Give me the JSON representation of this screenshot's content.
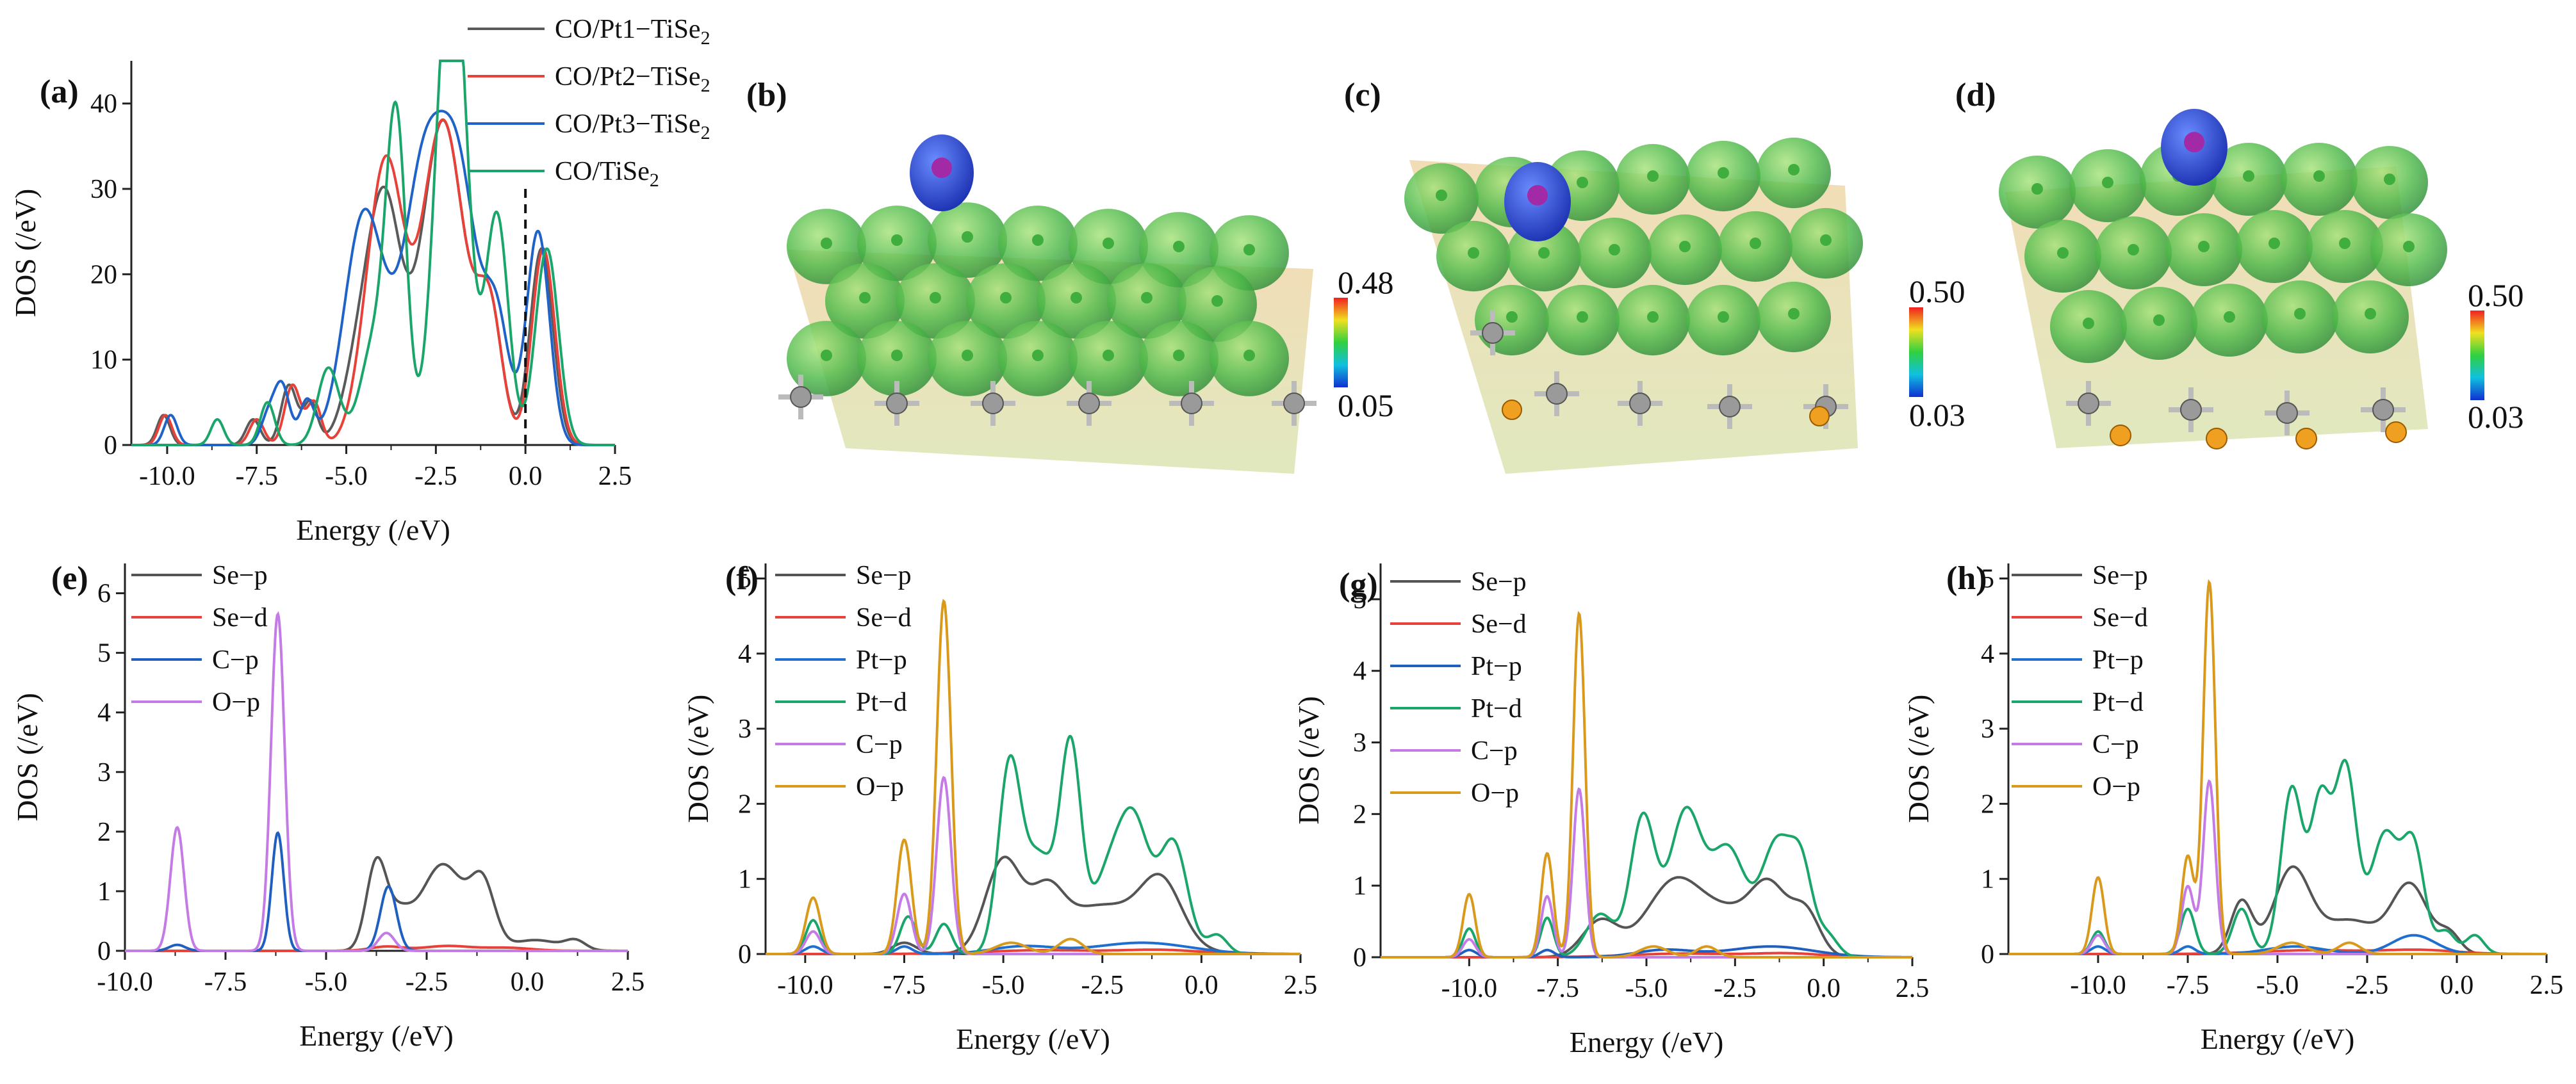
{
  "colors": {
    "Se-p": "#555555",
    "Se-d": "#e8413a",
    "C-p": "#1f5fbf",
    "Pt-p": "#1f6fd0",
    "Pt-d": "#1aa66b",
    "O-p": "#c47be6",
    "O-p-alt": "#d99a1c",
    "Pt1": "#5a5a5a",
    "Pt2": "#e8413a",
    "Pt3": "#1f62c8",
    "TiSe2": "#1aa66b"
  },
  "structures": [
    {
      "label": "(b)",
      "cb_max": "0.48",
      "cb_min": "0.05"
    },
    {
      "label": "(c)",
      "cb_max": "0.50",
      "cb_min": "0.03"
    },
    {
      "label": "(d)",
      "cb_max": "0.50",
      "cb_min": "0.03"
    }
  ],
  "chart_data": [
    {
      "id": "a",
      "label": "(a)",
      "type": "line",
      "xlabel": "Energy (/eV)",
      "ylabel": "DOS (/eV)",
      "xlim": [
        -11,
        2.5
      ],
      "ylim": [
        0,
        45
      ],
      "xticks": [
        -10.0,
        -7.5,
        -5.0,
        -2.5,
        0.0,
        2.5
      ],
      "xtick_labels": [
        "-10.0",
        "-7.5",
        "-5.0",
        "-2.5",
        "0.0",
        "2.5"
      ],
      "yticks": [
        0,
        10,
        20,
        30,
        40
      ],
      "ytick_labels": [
        "0",
        "10",
        "20",
        "30",
        "40"
      ],
      "fermi_line": {
        "x": 0,
        "y_top": 30
      },
      "series": [
        {
          "name": "CO/Pt1−TiSe",
          "sub": "2",
          "color": "#5a5a5a",
          "peaks": [
            [
              -10.1,
              3.5,
              0.18
            ],
            [
              -7.6,
              3,
              0.2
            ],
            [
              -6.6,
              7,
              0.22
            ],
            [
              -6,
              5,
              0.2
            ],
            [
              -4.6,
              10,
              0.45
            ],
            [
              -3.9,
              26,
              0.45
            ],
            [
              -2.3,
              38,
              0.6
            ],
            [
              -1,
              15,
              0.35
            ],
            [
              0.45,
              23,
              0.32
            ]
          ]
        },
        {
          "name": "CO/Pt2−TiSe",
          "sub": "2",
          "color": "#e8413a",
          "peaks": [
            [
              -10.05,
              3.5,
              0.18
            ],
            [
              -7.5,
              3,
              0.2
            ],
            [
              -6.5,
              7,
              0.22
            ],
            [
              -5.9,
              5,
              0.2
            ],
            [
              -4.3,
              11,
              0.45
            ],
            [
              -3.8,
              26,
              0.45
            ],
            [
              -2.3,
              38,
              0.6
            ],
            [
              -1,
              15,
              0.35
            ],
            [
              0.5,
              23,
              0.32
            ]
          ]
        },
        {
          "name": "CO/Pt3−TiSe",
          "sub": "2",
          "color": "#1f62c8",
          "peaks": [
            [
              -9.9,
              3.5,
              0.18
            ],
            [
              -7.2,
              3,
              0.2
            ],
            [
              -6.8,
              7,
              0.22
            ],
            [
              -6.1,
              5,
              0.2
            ],
            [
              -4.5,
              27,
              0.55
            ],
            [
              -2.8,
              33,
              0.6
            ],
            [
              -1.8,
              26,
              0.5
            ],
            [
              -0.8,
              14,
              0.35
            ],
            [
              0.35,
              25,
              0.32
            ]
          ]
        },
        {
          "name": "CO/TiSe",
          "sub": "2",
          "color": "#1aa66b",
          "peaks": [
            [
              -8.6,
              3,
              0.18
            ],
            [
              -7.2,
              5,
              0.2
            ],
            [
              -5.5,
              9,
              0.3
            ],
            [
              -4.2,
              12,
              0.4
            ],
            [
              -3.6,
              36,
              0.28
            ],
            [
              -2.3,
              30,
              0.35
            ],
            [
              -1.9,
              41,
              0.35
            ],
            [
              -0.8,
              27,
              0.32
            ],
            [
              0.6,
              23,
              0.32
            ]
          ]
        }
      ]
    },
    {
      "id": "e",
      "label": "(e)",
      "type": "line",
      "xlabel": "Energy (/eV)",
      "ylabel": "DOS (/eV)",
      "xlim": [
        -10,
        2.5
      ],
      "ylim": [
        0,
        6.5
      ],
      "xticks": [
        -10.0,
        -7.5,
        -5.0,
        -2.5,
        0.0,
        2.5
      ],
      "xtick_labels": [
        "-10.0",
        "-7.5",
        "-5.0",
        "-2.5",
        "0.0",
        "2.5"
      ],
      "yticks": [
        0,
        1,
        2,
        3,
        4,
        5,
        6
      ],
      "ytick_labels": [
        "0",
        "1",
        "2",
        "3",
        "4",
        "5",
        "6"
      ],
      "series": [
        {
          "name": "Se−p",
          "color": "#555555",
          "peaks": [
            [
              -3.75,
              1.45,
              0.25
            ],
            [
              -2.1,
              1.45,
              0.55
            ],
            [
              -1.1,
              1.0,
              0.3
            ],
            [
              -3.2,
              0.5,
              0.3
            ],
            [
              0.2,
              0.18,
              0.6
            ],
            [
              1.2,
              0.15,
              0.25
            ]
          ]
        },
        {
          "name": "Se−d",
          "color": "#e8413a",
          "peaks": [
            [
              -3.5,
              0.07,
              0.4
            ],
            [
              -2,
              0.08,
              0.6
            ],
            [
              -0.5,
              0.05,
              0.6
            ]
          ]
        },
        {
          "name": "C−p",
          "color": "#1f5fbf",
          "peaks": [
            [
              -6.2,
              1.98,
              0.15
            ],
            [
              -3.45,
              1.08,
              0.2
            ],
            [
              -8.7,
              0.1,
              0.2
            ]
          ]
        },
        {
          "name": "O−p",
          "color": "#c47be6",
          "peaks": [
            [
              -8.7,
              2.07,
              0.17
            ],
            [
              -6.2,
              5.65,
              0.17
            ],
            [
              -3.5,
              0.3,
              0.2
            ]
          ]
        }
      ]
    },
    {
      "id": "f",
      "label": "(f)",
      "type": "line",
      "xlabel": "Energy (/eV)",
      "ylabel": "DOS (/eV)",
      "xlim": [
        -11,
        2.5
      ],
      "ylim": [
        0,
        5.2
      ],
      "xticks": [
        -10.0,
        -7.5,
        -5.0,
        -2.5,
        0.0,
        2.5
      ],
      "xtick_labels": [
        "-10.0",
        "-7.5",
        "-5.0",
        "-2.5",
        "0.0",
        "2.5"
      ],
      "yticks": [
        0,
        1,
        2,
        3,
        4,
        5
      ],
      "ytick_labels": [
        "0",
        "1",
        "2",
        "3",
        "4",
        "5"
      ],
      "series": [
        {
          "name": "Se−p",
          "color": "#555555",
          "peaks": [
            [
              -5,
              1.2,
              0.45
            ],
            [
              -3.9,
              0.6,
              0.4
            ],
            [
              -2.5,
              0.65,
              1.2
            ],
            [
              -1,
              0.75,
              0.5
            ],
            [
              -7.5,
              0.15,
              0.3
            ]
          ]
        },
        {
          "name": "Se−d",
          "color": "#e8413a",
          "peaks": [
            [
              -4,
              0.05,
              1.5
            ],
            [
              -1,
              0.05,
              1
            ]
          ]
        },
        {
          "name": "Pt−p",
          "color": "#1f6fd0",
          "peaks": [
            [
              -9.8,
              0.1,
              0.2
            ],
            [
              -4.5,
              0.1,
              0.8
            ],
            [
              -1.5,
              0.15,
              1.2
            ],
            [
              -7.5,
              0.1,
              0.2
            ]
          ]
        },
        {
          "name": "Pt−d",
          "color": "#1aa66b",
          "peaks": [
            [
              -9.8,
              0.45,
              0.18
            ],
            [
              -7.4,
              0.5,
              0.2
            ],
            [
              -6.5,
              0.4,
              0.2
            ],
            [
              -4.85,
              2.4,
              0.28
            ],
            [
              -3.3,
              2.65,
              0.26
            ],
            [
              -4.1,
              1.3,
              0.4
            ],
            [
              -1.7,
              1.7,
              0.4
            ],
            [
              -0.7,
              1.45,
              0.35
            ],
            [
              -2.4,
              0.9,
              0.4
            ],
            [
              0.4,
              0.25,
              0.25
            ]
          ]
        },
        {
          "name": "C−p",
          "color": "#c47be6",
          "peaks": [
            [
              -9.8,
              0.3,
              0.18
            ],
            [
              -7.5,
              0.8,
              0.18
            ],
            [
              -6.5,
              2.35,
              0.18
            ]
          ]
        },
        {
          "name": "O−p",
          "color": "#d99a1c",
          "peaks": [
            [
              -9.8,
              0.75,
              0.18
            ],
            [
              -7.5,
              1.52,
              0.18
            ],
            [
              -6.5,
              4.7,
              0.18
            ],
            [
              -4.8,
              0.15,
              0.4
            ],
            [
              -3.3,
              0.2,
              0.3
            ]
          ]
        }
      ]
    },
    {
      "id": "g",
      "label": "(g)",
      "type": "line",
      "xlabel": "Energy (/eV)",
      "ylabel": "DOS (/eV)",
      "xlim": [
        -12.5,
        2.5
      ],
      "ylim": [
        0,
        5.5
      ],
      "xticks": [
        -10.0,
        -7.5,
        -5.0,
        -2.5,
        0.0,
        2.5
      ],
      "xtick_labels": [
        "-10.0",
        "-7.5",
        "-5.0",
        "-2.5",
        "0.0",
        "2.5"
      ],
      "yticks": [
        0,
        1,
        2,
        3,
        4,
        5
      ],
      "ytick_labels": [
        "0",
        "1",
        "2",
        "3",
        "4",
        "5"
      ],
      "series": [
        {
          "name": "Se−p",
          "color": "#555555",
          "peaks": [
            [
              -6.3,
              0.5,
              0.5
            ],
            [
              -4.2,
              1.05,
              0.8
            ],
            [
              -2.5,
              0.55,
              0.8
            ],
            [
              -1.5,
              0.8,
              0.5
            ],
            [
              -0.5,
              0.6,
              0.4
            ]
          ]
        },
        {
          "name": "Se−d",
          "color": "#e8413a",
          "peaks": [
            [
              -4,
              0.05,
              1.5
            ],
            [
              -1,
              0.05,
              1
            ]
          ]
        },
        {
          "name": "Pt−p",
          "color": "#1f5fbf",
          "peaks": [
            [
              -10,
              0.1,
              0.2
            ],
            [
              -4.5,
              0.1,
              0.8
            ],
            [
              -1.5,
              0.15,
              1.2
            ],
            [
              -7.8,
              0.1,
              0.2
            ]
          ]
        },
        {
          "name": "Pt−d",
          "color": "#1aa66b",
          "peaks": [
            [
              -10,
              0.4,
              0.18
            ],
            [
              -7.8,
              0.55,
              0.18
            ],
            [
              -6.3,
              0.6,
              0.4
            ],
            [
              -5.1,
              1.95,
              0.35
            ],
            [
              -3.9,
              2.0,
              0.45
            ],
            [
              -2.7,
              1.5,
              0.5
            ],
            [
              -1.3,
              1.6,
              0.45
            ],
            [
              -0.6,
              1.0,
              0.3
            ],
            [
              0.1,
              0.3,
              0.3
            ]
          ]
        },
        {
          "name": "C−p",
          "color": "#c47be6",
          "peaks": [
            [
              -10,
              0.25,
              0.18
            ],
            [
              -7.8,
              0.85,
              0.17
            ],
            [
              -6.9,
              2.35,
              0.17
            ]
          ]
        },
        {
          "name": "O−p",
          "color": "#d99a1c",
          "peaks": [
            [
              -10,
              0.88,
              0.17
            ],
            [
              -7.8,
              1.45,
              0.17
            ],
            [
              -6.9,
              4.8,
              0.17
            ],
            [
              -4.8,
              0.15,
              0.4
            ],
            [
              -3.3,
              0.15,
              0.3
            ]
          ]
        }
      ]
    },
    {
      "id": "h",
      "label": "(h)",
      "type": "line",
      "xlabel": "Energy (/eV)",
      "ylabel": "DOS (/eV)",
      "xlim": [
        -12.5,
        2.5
      ],
      "ylim": [
        0,
        5.2
      ],
      "xticks": [
        -10.0,
        -7.5,
        -5.0,
        -2.5,
        0.0,
        2.5
      ],
      "xtick_labels": [
        "-10.0",
        "-7.5",
        "-5.0",
        "-2.5",
        "0.0",
        "2.5"
      ],
      "yticks": [
        0,
        1,
        2,
        3,
        4,
        5
      ],
      "ytick_labels": [
        "0",
        "1",
        "2",
        "3",
        "4",
        "5"
      ],
      "series": [
        {
          "name": "Se−p",
          "color": "#555555",
          "peaks": [
            [
              -6,
              0.7,
              0.3
            ],
            [
              -4.6,
              1.1,
              0.5
            ],
            [
              -3,
              0.45,
              0.8
            ],
            [
              -1.3,
              0.9,
              0.5
            ],
            [
              -0.2,
              0.25,
              0.3
            ]
          ]
        },
        {
          "name": "Se−d",
          "color": "#e8413a",
          "peaks": [
            [
              -4,
              0.05,
              1.5
            ],
            [
              -1,
              0.05,
              1
            ]
          ]
        },
        {
          "name": "Pt−p",
          "color": "#1f6fd0",
          "peaks": [
            [
              -10,
              0.1,
              0.2
            ],
            [
              -4.5,
              0.1,
              0.8
            ],
            [
              -1.2,
              0.25,
              0.6
            ],
            [
              -7.5,
              0.1,
              0.2
            ]
          ]
        },
        {
          "name": "Pt−d",
          "color": "#1aa66b",
          "peaks": [
            [
              -10,
              0.3,
              0.18
            ],
            [
              -7.5,
              0.6,
              0.2
            ],
            [
              -6,
              0.6,
              0.25
            ],
            [
              -4.6,
              2.2,
              0.3
            ],
            [
              -3.8,
              2.0,
              0.28
            ],
            [
              -3.1,
              2.45,
              0.3
            ],
            [
              -2,
              1.6,
              0.4
            ],
            [
              -1.2,
              1.35,
              0.3
            ],
            [
              -0.3,
              0.3,
              0.25
            ],
            [
              0.5,
              0.25,
              0.25
            ]
          ]
        },
        {
          "name": "C−p",
          "color": "#c47be6",
          "peaks": [
            [
              -10,
              0.25,
              0.18
            ],
            [
              -7.5,
              0.9,
              0.17
            ],
            [
              -6.9,
              2.3,
              0.17
            ]
          ]
        },
        {
          "name": "O−p",
          "color": "#d99a1c",
          "peaks": [
            [
              -10,
              1.02,
              0.17
            ],
            [
              -7.5,
              1.3,
              0.17
            ],
            [
              -6.9,
              4.95,
              0.17
            ],
            [
              -4.6,
              0.15,
              0.4
            ],
            [
              -3,
              0.15,
              0.3
            ]
          ]
        }
      ]
    }
  ]
}
